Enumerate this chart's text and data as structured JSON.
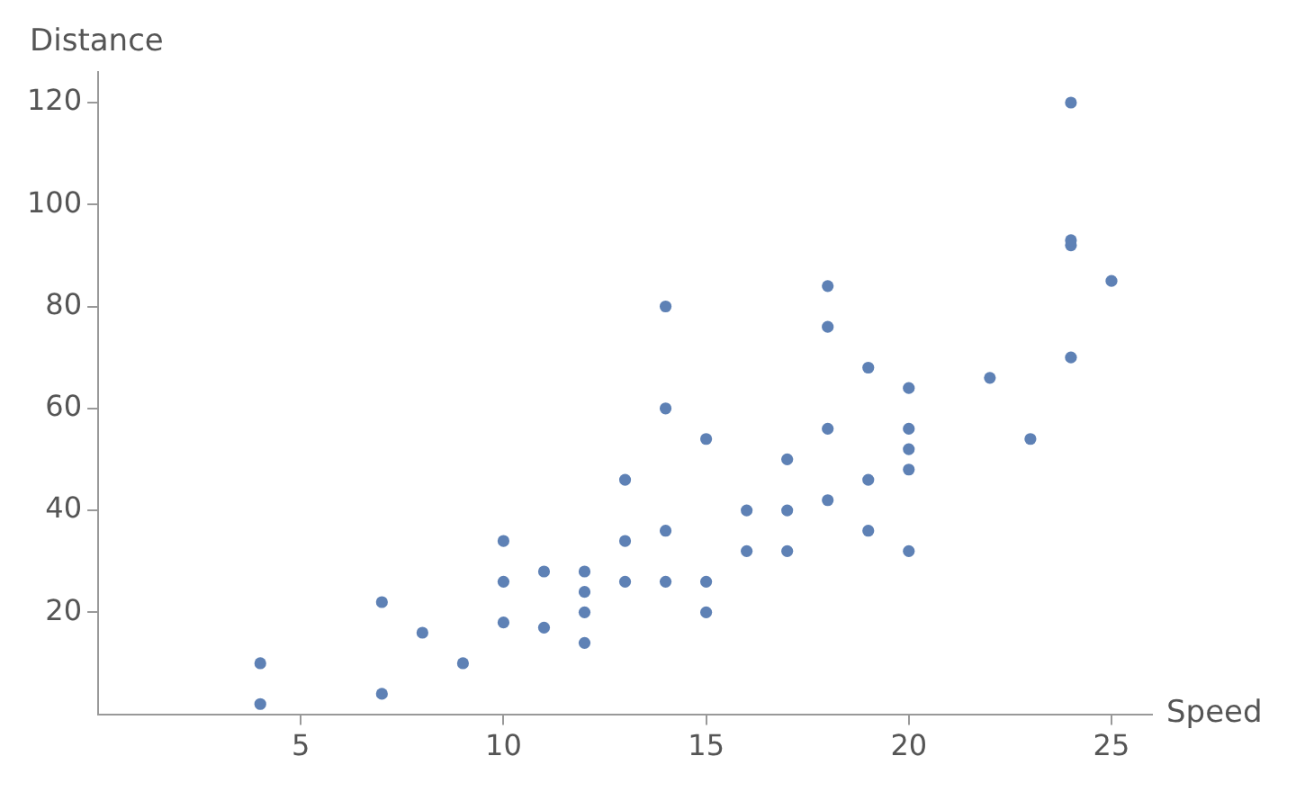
{
  "chart_data": {
    "type": "scatter",
    "xlabel": "Speed",
    "ylabel": "Distance",
    "x": [
      4,
      4,
      7,
      7,
      8,
      9,
      10,
      10,
      10,
      11,
      11,
      12,
      12,
      12,
      12,
      13,
      13,
      null,
      13,
      14,
      14,
      14,
      14,
      15,
      15,
      15,
      16,
      16,
      17,
      17,
      17,
      18,
      18,
      18,
      18,
      19,
      19,
      19,
      20,
      20,
      20,
      20,
      20,
      22,
      23,
      24,
      24,
      24,
      24,
      25
    ],
    "series": [
      {
        "color": "#5e81b5",
        "values": [
          2,
          10,
          4,
          22,
          16,
          10,
          18,
          26,
          34,
          17,
          28,
          14,
          20,
          24,
          28,
          26,
          34,
          null,
          46,
          26,
          36,
          60,
          80,
          20,
          26,
          54,
          32,
          40,
          32,
          40,
          50,
          42,
          56,
          76,
          84,
          36,
          46,
          68,
          32,
          48,
          52,
          56,
          64,
          66,
          54,
          70,
          92,
          93,
          120,
          85
        ]
      }
    ],
    "xlim": [
      0,
      26
    ],
    "ylim": [
      0,
      126
    ],
    "xticks": [
      5,
      10,
      15,
      20,
      25
    ],
    "yticks": [
      20,
      40,
      60,
      80,
      100,
      120
    ],
    "marker": "circle",
    "grid": false,
    "legend": false
  }
}
